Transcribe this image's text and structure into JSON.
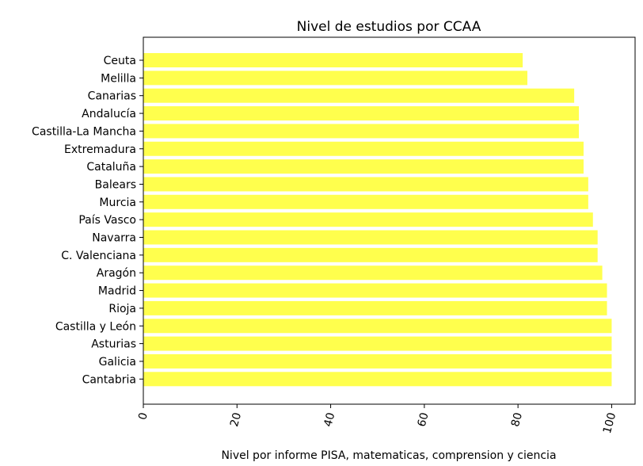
{
  "chart_data": {
    "type": "bar",
    "orientation": "horizontal",
    "title": "Nivel de estudios por CCAA",
    "xlabel": "Nivel por informe PISA, matematicas, comprension y ciencia",
    "ylabel": "",
    "xlim": [
      0,
      105
    ],
    "xticks": [
      0,
      20,
      40,
      60,
      80,
      100
    ],
    "grid": false,
    "legend": "none",
    "bar_color": "#ffff4d",
    "categories": [
      "Ceuta",
      "Melilla",
      "Canarias",
      "Andalucía",
      "Castilla-La Mancha",
      "Extremadura",
      "Cataluña",
      "Balears",
      "Murcia",
      "País Vasco",
      "Navarra",
      "C. Valenciana",
      "Aragón",
      "Madrid",
      "Rioja",
      "Castilla y León",
      "Asturias",
      "Galicia",
      "Cantabria"
    ],
    "values": [
      81,
      82,
      92,
      93,
      93,
      94,
      94,
      95,
      95,
      96,
      97,
      97,
      98,
      99,
      99,
      100,
      100,
      100,
      100
    ]
  }
}
